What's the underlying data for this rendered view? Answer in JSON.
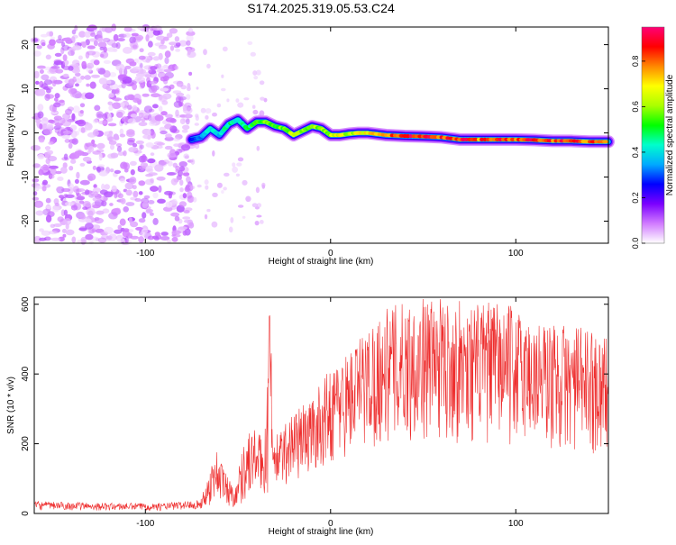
{
  "page": {
    "title": "S174.2025.319.05.53.C24"
  },
  "chart_data": [
    {
      "type": "heatmap",
      "title": "S174.2025.319.05.53.C24",
      "xlabel": "Height of straight line (km)",
      "ylabel": "Frequency (Hz)",
      "xlim": [
        -160,
        150
      ],
      "ylim": [
        -25,
        24
      ],
      "x_ticks": [
        -100,
        0,
        100
      ],
      "x_tick_labels": [
        "-100",
        "0",
        "100"
      ],
      "y_ticks": [
        20,
        10,
        0,
        -10,
        -20
      ],
      "y_tick_labels": [
        "20",
        "10",
        "0",
        "-10",
        "-20"
      ],
      "colorbar": {
        "label": "Normalized spectral amplitude",
        "range": [
          0,
          0.95
        ],
        "ticks": [
          0.0,
          0.2,
          0.4,
          0.6,
          0.8
        ],
        "tick_labels": [
          "0.0",
          "0.2",
          "0.4",
          "0.6",
          "0.8"
        ],
        "colors": [
          "#ffffff",
          "#d17bff",
          "#7b00ff",
          "#0000ff",
          "#00aaff",
          "#00ffcc",
          "#00ff00",
          "#aaff00",
          "#ffff00",
          "#ff8800",
          "#ff0000",
          "#ff0077"
        ]
      },
      "noise_region": {
        "x_range": [
          -160,
          -75
        ],
        "freq_range": [
          -25,
          24
        ],
        "level_range": [
          0.02,
          0.12
        ]
      },
      "ridge": [
        {
          "x": -75,
          "f": -1.5,
          "a": 0.25
        },
        {
          "x": -70,
          "f": -1.0,
          "a": 0.35
        },
        {
          "x": -65,
          "f": 1.0,
          "a": 0.45
        },
        {
          "x": -60,
          "f": -0.5,
          "a": 0.4
        },
        {
          "x": -55,
          "f": 2.0,
          "a": 0.5
        },
        {
          "x": -50,
          "f": 3.0,
          "a": 0.45
        },
        {
          "x": -45,
          "f": 1.0,
          "a": 0.5
        },
        {
          "x": -40,
          "f": 2.5,
          "a": 0.55
        },
        {
          "x": -35,
          "f": 2.5,
          "a": 0.6
        },
        {
          "x": -30,
          "f": 1.5,
          "a": 0.55
        },
        {
          "x": -25,
          "f": 1.0,
          "a": 0.6
        },
        {
          "x": -20,
          "f": -0.5,
          "a": 0.65
        },
        {
          "x": -15,
          "f": 0.5,
          "a": 0.6
        },
        {
          "x": -10,
          "f": 1.5,
          "a": 0.65
        },
        {
          "x": -5,
          "f": 1.0,
          "a": 0.6
        },
        {
          "x": 0,
          "f": -0.5,
          "a": 0.65
        },
        {
          "x": 5,
          "f": -0.5,
          "a": 0.7
        },
        {
          "x": 10,
          "f": -0.2,
          "a": 0.65
        },
        {
          "x": 15,
          "f": 0.0,
          "a": 0.7
        },
        {
          "x": 20,
          "f": 0.0,
          "a": 0.75
        },
        {
          "x": 30,
          "f": -0.5,
          "a": 0.8
        },
        {
          "x": 40,
          "f": -0.7,
          "a": 0.9
        },
        {
          "x": 50,
          "f": -0.8,
          "a": 0.95
        },
        {
          "x": 60,
          "f": -1.0,
          "a": 0.85
        },
        {
          "x": 70,
          "f": -1.5,
          "a": 0.9
        },
        {
          "x": 80,
          "f": -1.5,
          "a": 0.85
        },
        {
          "x": 90,
          "f": -1.5,
          "a": 0.9
        },
        {
          "x": 100,
          "f": -1.5,
          "a": 0.85
        },
        {
          "x": 110,
          "f": -1.6,
          "a": 0.9
        },
        {
          "x": 120,
          "f": -1.8,
          "a": 0.85
        },
        {
          "x": 130,
          "f": -1.8,
          "a": 0.9
        },
        {
          "x": 140,
          "f": -2.0,
          "a": 0.85
        },
        {
          "x": 150,
          "f": -2.0,
          "a": 0.8
        }
      ]
    },
    {
      "type": "line",
      "xlabel": "Height of straight line (km)",
      "ylabel": "SNR (10 * v/v)",
      "xlim": [
        -160,
        150
      ],
      "ylim": [
        0,
        620
      ],
      "x_ticks": [
        -100,
        0,
        100
      ],
      "x_tick_labels": [
        "-100",
        "0",
        "100"
      ],
      "y_ticks": [
        0,
        200,
        400,
        600
      ],
      "y_tick_labels": [
        "0",
        "200",
        "400",
        "600"
      ],
      "series": [
        {
          "name": "SNR",
          "color": "#ee2e2e",
          "envelope": [
            {
              "x": -160,
              "low": 10,
              "high": 35
            },
            {
              "x": -120,
              "low": 8,
              "high": 30
            },
            {
              "x": -90,
              "low": 8,
              "high": 30
            },
            {
              "x": -70,
              "low": 12,
              "high": 40
            },
            {
              "x": -65,
              "low": 20,
              "high": 130
            },
            {
              "x": -62,
              "low": 40,
              "high": 190
            },
            {
              "x": -58,
              "low": 20,
              "high": 140
            },
            {
              "x": -52,
              "low": 15,
              "high": 70
            },
            {
              "x": -46,
              "low": 30,
              "high": 230
            },
            {
              "x": -40,
              "low": 60,
              "high": 250
            },
            {
              "x": -36,
              "low": 40,
              "high": 200
            },
            {
              "x": -33,
              "low": 40,
              "high": 580
            },
            {
              "x": -30,
              "low": 50,
              "high": 220
            },
            {
              "x": -20,
              "low": 90,
              "high": 300
            },
            {
              "x": -10,
              "low": 110,
              "high": 330
            },
            {
              "x": 0,
              "low": 140,
              "high": 420
            },
            {
              "x": 10,
              "low": 160,
              "high": 470
            },
            {
              "x": 20,
              "low": 180,
              "high": 540
            },
            {
              "x": 30,
              "low": 190,
              "high": 590
            },
            {
              "x": 40,
              "low": 200,
              "high": 610
            },
            {
              "x": 50,
              "low": 210,
              "high": 620
            },
            {
              "x": 60,
              "low": 210,
              "high": 615
            },
            {
              "x": 70,
              "low": 200,
              "high": 610
            },
            {
              "x": 80,
              "low": 200,
              "high": 600
            },
            {
              "x": 90,
              "low": 190,
              "high": 610
            },
            {
              "x": 100,
              "low": 190,
              "high": 590
            },
            {
              "x": 110,
              "low": 180,
              "high": 560
            },
            {
              "x": 120,
              "low": 170,
              "high": 550
            },
            {
              "x": 130,
              "low": 170,
              "high": 540
            },
            {
              "x": 140,
              "low": 170,
              "high": 530
            },
            {
              "x": 150,
              "low": 170,
              "high": 520
            }
          ]
        }
      ]
    }
  ]
}
